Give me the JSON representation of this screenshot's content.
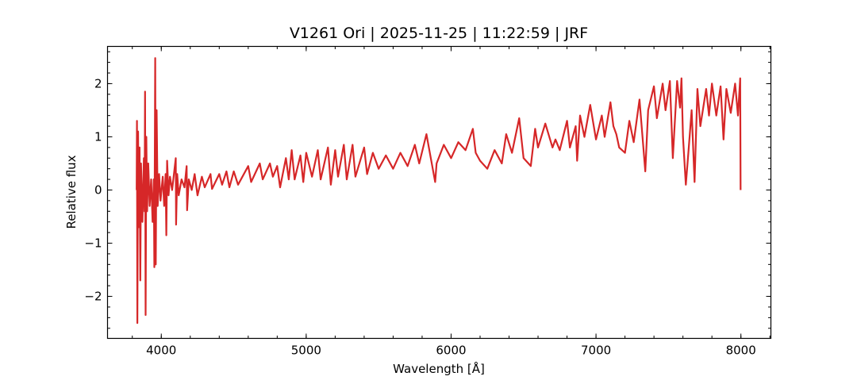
{
  "chart_data": {
    "type": "line",
    "title": "V1261 Ori | 2025-11-25 | 11:22:59 | JRF",
    "xlabel": "Wavelength [Å]",
    "ylabel": "Relative flux",
    "xlim": [
      3629,
      8207
    ],
    "ylim": [
      -2.79,
      2.7
    ],
    "xticks": [
      4000,
      5000,
      6000,
      7000,
      8000
    ],
    "xtick_labels": [
      "4000",
      "5000",
      "6000",
      "7000",
      "8000"
    ],
    "yticks": [
      -2,
      -1,
      0,
      1,
      2
    ],
    "ytick_labels": [
      "−2",
      "−1",
      "0",
      "1",
      "2"
    ],
    "x_minor_step": 200,
    "y_minor_step": 0.2,
    "grid": false,
    "series": [
      {
        "color": "#d62728",
        "x": [
          3830,
          3832,
          3835,
          3840,
          3845,
          3850,
          3855,
          3860,
          3870,
          3880,
          3885,
          3888,
          3892,
          3897,
          3902,
          3910,
          3920,
          3930,
          3940,
          3948,
          3952,
          3958,
          3962,
          3968,
          3975,
          3985,
          3995,
          4010,
          4020,
          4030,
          4035,
          4040,
          4050,
          4060,
          4075,
          4100,
          4102,
          4110,
          4120,
          4140,
          4160,
          4175,
          4178,
          4190,
          4210,
          4230,
          4250,
          4280,
          4300,
          4340,
          4350,
          4400,
          4420,
          4450,
          4470,
          4500,
          4530,
          4600,
          4620,
          4680,
          4700,
          4750,
          4770,
          4800,
          4820,
          4860,
          4880,
          4900,
          4920,
          4960,
          4980,
          5000,
          5040,
          5080,
          5100,
          5150,
          5170,
          5200,
          5220,
          5260,
          5280,
          5320,
          5340,
          5400,
          5420,
          5460,
          5500,
          5550,
          5600,
          5650,
          5700,
          5750,
          5780,
          5830,
          5860,
          5890,
          5900,
          5950,
          6000,
          6050,
          6100,
          6150,
          6170,
          6200,
          6250,
          6300,
          6350,
          6380,
          6420,
          6470,
          6500,
          6550,
          6580,
          6600,
          6650,
          6700,
          6720,
          6750,
          6800,
          6820,
          6860,
          6870,
          6890,
          6920,
          6960,
          7000,
          7040,
          7060,
          7100,
          7120,
          7140,
          7160,
          7200,
          7230,
          7260,
          7300,
          7340,
          7360,
          7400,
          7420,
          7460,
          7480,
          7510,
          7530,
          7560,
          7580,
          7590,
          7600,
          7620,
          7640,
          7660,
          7680,
          7700,
          7720,
          7760,
          7780,
          7800,
          7830,
          7860,
          7880,
          7900,
          7930,
          7960,
          7980,
          7995,
          7998
        ],
        "y": [
          0,
          1.3,
          -2.5,
          1.1,
          -0.7,
          0.8,
          -1.7,
          0.5,
          -0.6,
          0.6,
          -0.4,
          1.85,
          -2.35,
          1.0,
          -0.4,
          0.5,
          -0.3,
          0.2,
          -0.6,
          0.2,
          -1.45,
          2.48,
          -1.4,
          1.5,
          -0.3,
          0.3,
          -0.2,
          0.25,
          -0.3,
          0.3,
          -0.85,
          0.55,
          -0.1,
          0.25,
          0,
          0.6,
          -0.65,
          0.3,
          -0.1,
          0.2,
          0.05,
          0.45,
          -0.38,
          0.2,
          0,
          0.3,
          -0.1,
          0.25,
          0.05,
          0.3,
          0.02,
          0.3,
          0.1,
          0.35,
          0.05,
          0.35,
          0.1,
          0.45,
          0.15,
          0.5,
          0.2,
          0.5,
          0.25,
          0.45,
          0.05,
          0.6,
          0.2,
          0.75,
          0.2,
          0.65,
          0.15,
          0.7,
          0.25,
          0.75,
          0.2,
          0.8,
          0.1,
          0.75,
          0.25,
          0.85,
          0.2,
          0.85,
          0.25,
          0.8,
          0.3,
          0.7,
          0.4,
          0.65,
          0.4,
          0.7,
          0.45,
          0.85,
          0.5,
          1.05,
          0.6,
          0.15,
          0.5,
          0.85,
          0.6,
          0.9,
          0.75,
          1.15,
          0.7,
          0.55,
          0.4,
          0.75,
          0.5,
          1.05,
          0.7,
          1.35,
          0.6,
          0.45,
          1.15,
          0.8,
          1.25,
          0.8,
          0.95,
          0.75,
          1.3,
          0.8,
          1.2,
          0.55,
          1.4,
          1.0,
          1.6,
          0.95,
          1.4,
          1.0,
          1.65,
          1.2,
          1.05,
          0.8,
          0.7,
          1.3,
          0.9,
          1.7,
          0.35,
          1.5,
          1.95,
          1.35,
          2.0,
          1.5,
          2.05,
          0.6,
          2.05,
          1.55,
          2.1,
          1.0,
          0.1,
          0.8,
          1.5,
          0.15,
          1.9,
          1.2,
          1.9,
          1.4,
          2.0,
          1.4,
          1.95,
          0.95,
          1.9,
          1.45,
          2.0,
          1.4,
          2.1,
          0.0
        ]
      }
    ]
  }
}
